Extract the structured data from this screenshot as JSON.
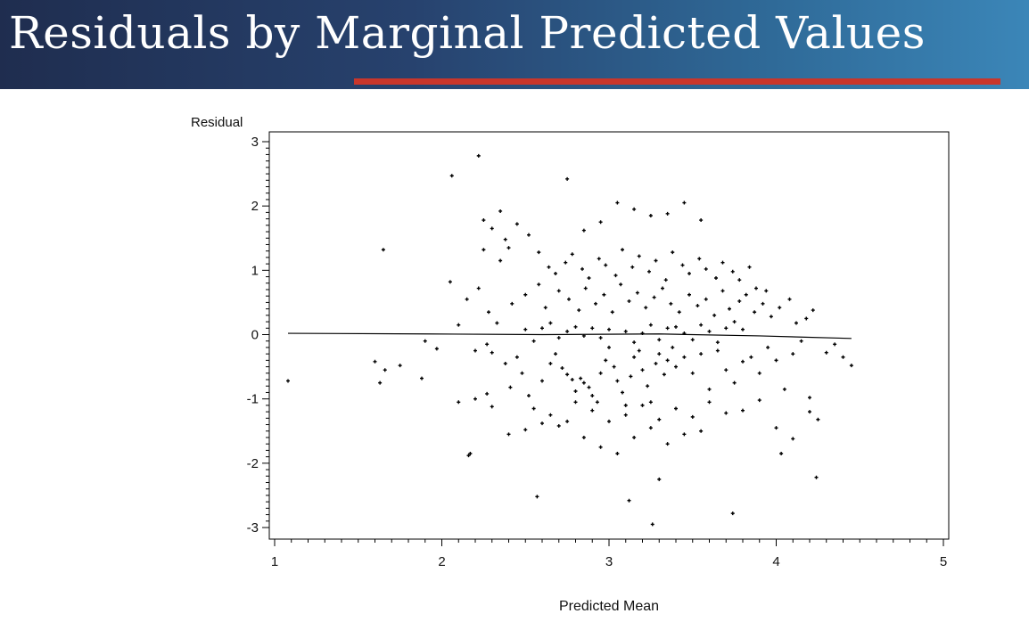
{
  "slide": {
    "title": "Residuals by Marginal Predicted Values"
  },
  "chart_data": {
    "type": "scatter",
    "xlabel": "Predicted Mean",
    "ylabel": "Residual",
    "xlim": [
      1,
      5
    ],
    "ylim": [
      -3,
      3
    ],
    "xticks": [
      "1",
      "2",
      "3",
      "4",
      "5"
    ],
    "yticks": [
      "3",
      "2",
      "1",
      "0",
      "-1",
      "-2",
      "-3"
    ],
    "grid": false,
    "series": [
      {
        "mode": "markers",
        "x": [
          1.08,
          1.65,
          2.06,
          2.22,
          1.6,
          1.63,
          1.66,
          1.75,
          1.9,
          1.97,
          2.05,
          1.88,
          2.16,
          2.2,
          2.25,
          2.27,
          2.3,
          2.35,
          2.38,
          2.41,
          2.45,
          2.48,
          2.52,
          2.55,
          2.6,
          2.65,
          2.68,
          2.72,
          2.75,
          2.78,
          2.8,
          2.83,
          2.85,
          2.88,
          2.9,
          2.93,
          2.95,
          2.98,
          3.0,
          3.03,
          3.05,
          3.08,
          3.1,
          3.13,
          3.15,
          3.18,
          3.2,
          3.23,
          3.25,
          3.28,
          3.3,
          3.33,
          3.35,
          3.38,
          3.4,
          3.45,
          3.5,
          3.55,
          3.6,
          3.65,
          3.7,
          3.75,
          3.8,
          3.85,
          3.9,
          3.95,
          4.0,
          4.05,
          4.1,
          4.15,
          4.2,
          4.25,
          4.3,
          4.35,
          4.4,
          4.45,
          2.1,
          2.15,
          2.28,
          2.33,
          2.42,
          2.5,
          2.58,
          2.62,
          2.7,
          2.76,
          2.82,
          2.86,
          2.92,
          2.97,
          3.02,
          3.07,
          3.12,
          3.17,
          3.22,
          3.27,
          3.32,
          3.37,
          3.42,
          3.48,
          3.53,
          3.58,
          3.63,
          3.68,
          3.72,
          3.78,
          3.82,
          3.87,
          3.92,
          3.97,
          4.02,
          4.08,
          4.12,
          4.18,
          4.22,
          2.9,
          2.95,
          3.0,
          3.1,
          3.15,
          3.2,
          3.25,
          3.3,
          3.35,
          2.85,
          2.8,
          2.75,
          2.7,
          2.65,
          2.6,
          2.55,
          2.5,
          3.4,
          3.45,
          3.5,
          3.55,
          3.6,
          3.65,
          3.7,
          3.75,
          3.8,
          2.35,
          2.4,
          2.3,
          2.25,
          2.22,
          2.38,
          2.45,
          2.52,
          2.58,
          2.64,
          2.68,
          2.74,
          2.78,
          2.84,
          2.88,
          2.94,
          2.98,
          3.04,
          3.08,
          3.14,
          3.18,
          3.24,
          3.28,
          3.34,
          3.38,
          3.44,
          3.48,
          3.54,
          3.58,
          3.64,
          3.68,
          3.74,
          3.78,
          3.84,
          3.88,
          3.94,
          2.57,
          3.12,
          3.26,
          3.74,
          2.17,
          4.24,
          4.03,
          3.3,
          2.27,
          2.85,
          2.95,
          3.05,
          3.15,
          3.25,
          3.35,
          3.45,
          2.75,
          2.65,
          3.55,
          3.0,
          3.1,
          3.2,
          2.9,
          2.8,
          3.3,
          3.4,
          3.5,
          2.7,
          3.6,
          2.6,
          3.7,
          2.5,
          3.8,
          2.4,
          3.9,
          2.3,
          4.0,
          2.2,
          4.1,
          2.1,
          4.2,
          3.05,
          3.15,
          3.25,
          2.95,
          2.85,
          3.35,
          3.45,
          2.75,
          3.55
        ],
        "y": [
          -0.72,
          1.32,
          2.47,
          2.78,
          -0.42,
          -0.75,
          -0.55,
          -0.48,
          -0.1,
          -0.22,
          0.82,
          -0.68,
          -1.88,
          -0.25,
          1.32,
          -0.15,
          -0.28,
          1.92,
          -0.45,
          -0.82,
          -0.35,
          -0.6,
          -0.95,
          -1.15,
          -0.72,
          -0.45,
          -0.3,
          -0.52,
          -0.62,
          -0.7,
          -0.88,
          -0.68,
          -0.75,
          -0.82,
          -0.95,
          -1.05,
          -0.6,
          -0.4,
          -0.2,
          -0.5,
          -0.72,
          -0.9,
          -1.1,
          -0.65,
          -0.35,
          -0.25,
          -0.55,
          -0.8,
          -1.05,
          -0.45,
          -0.3,
          -0.62,
          -0.4,
          -0.2,
          -0.5,
          -0.35,
          -0.6,
          -0.3,
          -0.85,
          -0.25,
          -0.55,
          -0.75,
          -0.42,
          -0.35,
          -0.6,
          -0.2,
          -0.4,
          -0.85,
          -0.3,
          -0.1,
          -0.98,
          -1.32,
          -0.28,
          -0.15,
          -0.35,
          -0.48,
          0.15,
          0.55,
          0.35,
          0.18,
          0.48,
          0.62,
          0.78,
          0.42,
          0.68,
          0.55,
          0.38,
          0.72,
          0.48,
          0.62,
          0.35,
          0.78,
          0.52,
          0.65,
          0.42,
          0.58,
          0.72,
          0.48,
          0.35,
          0.62,
          0.45,
          0.55,
          0.3,
          0.68,
          0.4,
          0.52,
          0.62,
          0.35,
          0.48,
          0.28,
          0.42,
          0.55,
          0.18,
          0.25,
          0.38,
          0.1,
          -0.05,
          0.08,
          0.05,
          -0.12,
          0.02,
          0.15,
          -0.08,
          0.1,
          -0.02,
          0.12,
          0.05,
          -0.05,
          0.18,
          0.1,
          -0.1,
          0.08,
          0.12,
          0.02,
          -0.08,
          0.15,
          0.05,
          -0.12,
          0.1,
          0.2,
          0.08,
          1.15,
          1.35,
          1.65,
          1.78,
          0.72,
          1.48,
          1.72,
          1.55,
          1.28,
          1.05,
          0.95,
          1.12,
          1.25,
          1.02,
          0.88,
          1.18,
          1.08,
          0.92,
          1.32,
          1.05,
          1.22,
          0.98,
          1.15,
          0.85,
          1.28,
          1.08,
          0.95,
          1.18,
          1.02,
          0.88,
          1.12,
          0.98,
          0.85,
          1.05,
          0.72,
          0.68,
          -2.52,
          -2.58,
          -2.95,
          -2.78,
          -1.85,
          -2.22,
          -1.85,
          -2.25,
          -0.92,
          -1.6,
          -1.75,
          -1.85,
          -1.6,
          -1.45,
          -1.7,
          -1.55,
          -1.35,
          -1.25,
          -1.5,
          -1.35,
          -1.25,
          -1.1,
          -1.18,
          -1.05,
          -1.32,
          -1.15,
          -1.28,
          -1.42,
          -1.05,
          -1.38,
          -1.22,
          -1.48,
          -1.18,
          -1.55,
          -1.02,
          -1.12,
          -1.45,
          -1.0,
          -1.62,
          -1.05,
          -1.2,
          2.05,
          1.95,
          1.85,
          1.75,
          1.62,
          1.88,
          2.05,
          2.42,
          1.78
        ]
      },
      {
        "mode": "line",
        "x": [
          1.08,
          1.9,
          2.6,
          3.3,
          3.9,
          4.45
        ],
        "y": [
          0.02,
          0.01,
          0.0,
          0.01,
          -0.02,
          -0.06
        ]
      }
    ]
  }
}
